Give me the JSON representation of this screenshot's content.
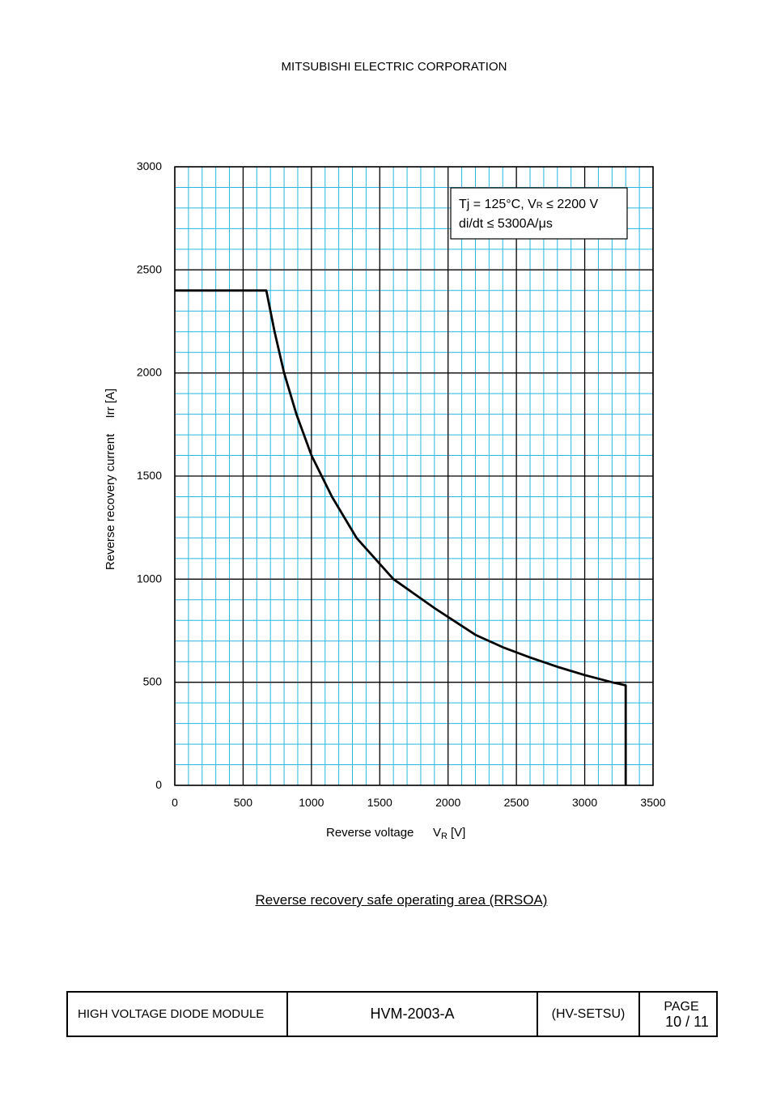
{
  "header": {
    "company": "MITSUBISHI ELECTRIC CORPORATION"
  },
  "caption": "Reverse recovery safe operating area (RRSOA)",
  "footer": {
    "product": "HIGH VOLTAGE DIODE MODULE",
    "code": "HVM-2003-A",
    "series": "(HV-SETSU)",
    "page_label": "PAGE",
    "page_value": "10 / 11"
  },
  "colors": {
    "minor_grid": "#29b6e0",
    "major_grid": "#000000",
    "curve": "#000000"
  },
  "chart_data": {
    "type": "line",
    "title": "",
    "xlabel": "Reverse voltage",
    "xlabel_symbol": "V",
    "xlabel_sub": "R",
    "xlabel_unit": "[V]",
    "ylabel": "Reverse recovery current　 Irr [A]",
    "xlim": [
      0,
      3500
    ],
    "ylim": [
      0,
      3000
    ],
    "x_ticks": [
      0,
      500,
      1000,
      1500,
      2000,
      2500,
      3000,
      3500
    ],
    "y_ticks": [
      0,
      500,
      1000,
      1500,
      2000,
      2500,
      3000
    ],
    "x_minor_step": 100,
    "y_minor_step": 100,
    "grid": true,
    "legend": {
      "placement": "top-right",
      "line1_pre": "Tj = 125°C, V",
      "line1_sub": "R",
      "line1_post": " ≤ 2200 V",
      "line2": "di/dt ≤ 5300A/μs"
    },
    "series": [
      {
        "x": [
          0,
          670,
          730,
          800,
          890,
          1000,
          1150,
          1330,
          1600,
          1900,
          2200,
          2400,
          2600,
          2800,
          3000,
          3200,
          3300,
          3300
        ],
        "y": [
          2400,
          2400,
          2200,
          2000,
          1800,
          1600,
          1400,
          1200,
          1000,
          860,
          730,
          670,
          620,
          575,
          535,
          500,
          485,
          0
        ]
      }
    ]
  }
}
